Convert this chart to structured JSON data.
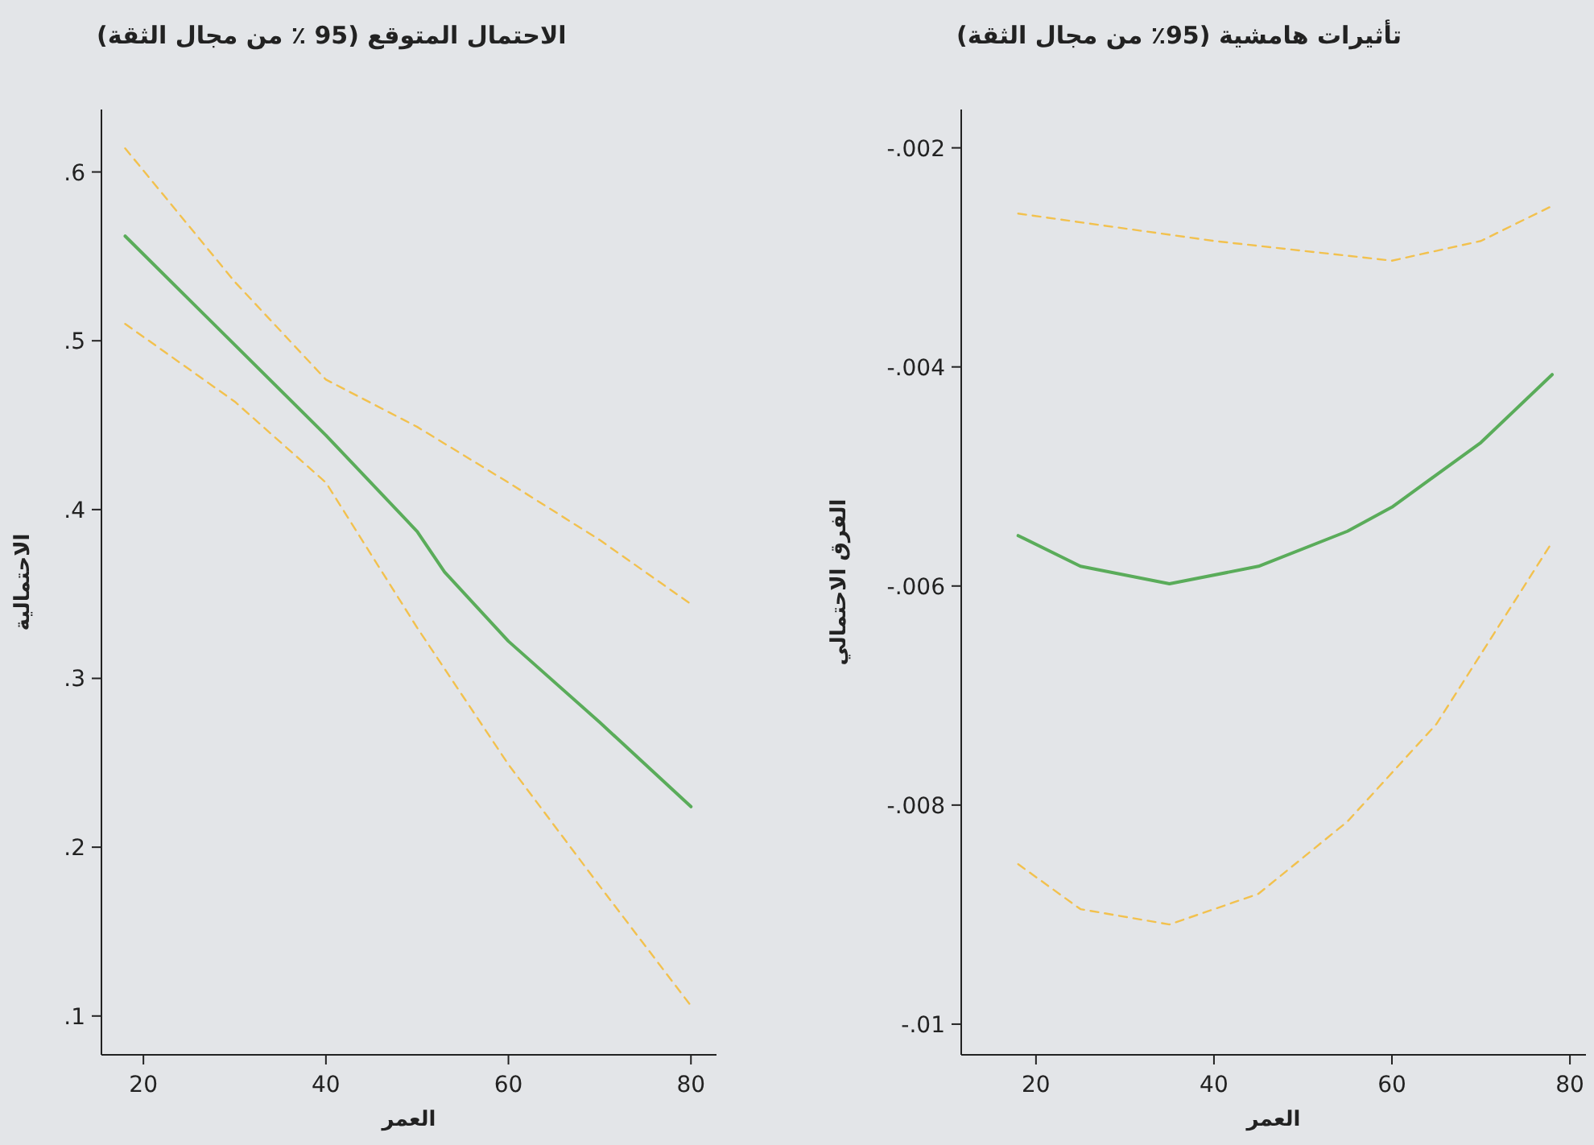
{
  "chart_data": [
    {
      "type": "line",
      "title": "الاحتمال المتوقع (95 ٪ من مجال الثقة)",
      "xlabel": "العمر",
      "ylabel": "الاحتمالية",
      "xlim": [
        15.4,
        82.8
      ],
      "ylim": [
        0.077,
        0.637
      ],
      "xticks": [
        20,
        40,
        60,
        80
      ],
      "yticks": [
        {
          "value": 0.1,
          "label": ".1"
        },
        {
          "value": 0.2,
          "label": ".2"
        },
        {
          "value": 0.3,
          "label": ".3"
        },
        {
          "value": 0.4,
          "label": ".4"
        },
        {
          "value": 0.5,
          "label": ".5"
        },
        {
          "value": 0.6,
          "label": ".6"
        }
      ],
      "series": [
        {
          "color": "#f2c14e",
          "line_style": "dashed",
          "x": [
            18,
            30,
            40,
            50,
            60,
            70,
            80
          ],
          "values": [
            0.614,
            0.535,
            0.477,
            0.449,
            0.416,
            0.382,
            0.344
          ]
        },
        {
          "color": "#f2c14e",
          "line_style": "dashed",
          "x": [
            18,
            30,
            40,
            50,
            60,
            70,
            80
          ],
          "values": [
            0.51,
            0.464,
            0.416,
            0.33,
            0.249,
            0.177,
            0.106
          ]
        },
        {
          "color": "#5aac5a",
          "line_style": "solid",
          "x": [
            18,
            40,
            50,
            53,
            60,
            70,
            80
          ],
          "values": [
            0.562,
            0.444,
            0.387,
            0.363,
            0.322,
            0.274,
            0.224
          ]
        }
      ]
    },
    {
      "type": "line",
      "title": "تأثيرات هامشية (95٪ من مجال الثقة)",
      "xlabel": "العمر",
      "ylabel": "الفرق الاحتمالي",
      "xlim": [
        11.6,
        81.8
      ],
      "ylim": [
        -0.01028,
        -0.00165
      ],
      "xticks": [
        20,
        40,
        60,
        80
      ],
      "yticks": [
        {
          "value": -0.01,
          "label": "-.01"
        },
        {
          "value": -0.008,
          "label": "-.008"
        },
        {
          "value": -0.006,
          "label": "-.006"
        },
        {
          "value": -0.004,
          "label": "-.004"
        },
        {
          "value": -0.002,
          "label": "-.002"
        }
      ],
      "series": [
        {
          "color": "#f2c14e",
          "line_style": "dashed",
          "x": [
            18,
            40,
            60,
            70,
            78
          ],
          "values": [
            -0.0026,
            -0.00285,
            -0.00303,
            -0.00285,
            -0.00253
          ]
        },
        {
          "color": "#f2c14e",
          "line_style": "dashed",
          "x": [
            18,
            25,
            35,
            45,
            55,
            65,
            78
          ],
          "values": [
            -0.00854,
            -0.00895,
            -0.00909,
            -0.00881,
            -0.00815,
            -0.00726,
            -0.0056
          ]
        },
        {
          "color": "#5aac5a",
          "line_style": "solid",
          "x": [
            18,
            25,
            35,
            45,
            55,
            60,
            70,
            78
          ],
          "values": [
            -0.00554,
            -0.00582,
            -0.00598,
            -0.00582,
            -0.0055,
            -0.00528,
            -0.00469,
            -0.00407
          ]
        }
      ]
    }
  ]
}
